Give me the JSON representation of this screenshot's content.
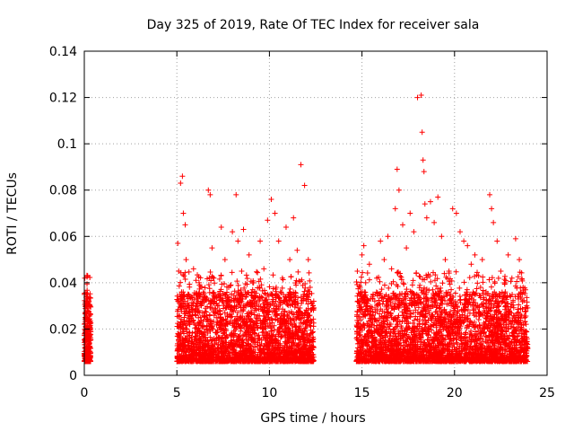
{
  "chart_data": {
    "type": "scatter",
    "title": "Day 325 of 2019, Rate Of TEC Index for receiver sala",
    "xlabel": "GPS time / hours",
    "ylabel": "ROTI / TECUs",
    "xlim": [
      0,
      25
    ],
    "ylim": [
      0,
      0.14
    ],
    "xticks": [
      0,
      5,
      10,
      15,
      20,
      25
    ],
    "xtick_labels": [
      "0",
      "5",
      "10",
      "15",
      "20",
      "25"
    ],
    "yticks": [
      0,
      0.02,
      0.04,
      0.06,
      0.08,
      0.1,
      0.12,
      0.14
    ],
    "ytick_labels": [
      "0",
      "0.02",
      "0.04",
      "0.06",
      "0.08",
      "0.1",
      "0.12",
      "0.14"
    ],
    "grid": true,
    "marker": "+",
    "color": "#ff0000",
    "series": [
      {
        "name": "ROTI",
        "x": [
          0.05,
          0.12,
          0.18,
          0.22,
          0.26,
          0.3,
          0.34,
          0.08,
          0.15,
          0.2,
          0.28,
          5.05,
          5.1,
          5.2,
          5.3,
          5.35,
          5.45,
          5.5,
          5.6,
          5.7,
          5.8,
          5.9,
          6.0,
          6.1,
          6.2,
          6.3,
          6.45,
          6.55,
          6.7,
          6.8,
          6.9,
          7.0,
          7.2,
          7.4,
          7.6,
          7.8,
          8.0,
          8.2,
          8.3,
          8.5,
          8.6,
          8.7,
          8.9,
          9.1,
          9.3,
          9.5,
          9.7,
          9.9,
          10.1,
          10.3,
          10.5,
          10.7,
          10.9,
          11.1,
          11.3,
          11.5,
          11.7,
          11.9,
          12.1,
          12.2,
          12.35,
          14.75,
          14.9,
          15.0,
          15.1,
          15.2,
          15.4,
          15.6,
          15.8,
          16.0,
          16.2,
          16.4,
          16.6,
          16.8,
          16.9,
          17.0,
          17.2,
          17.4,
          17.6,
          17.8,
          18.0,
          18.2,
          18.25,
          18.3,
          18.35,
          18.4,
          18.5,
          18.7,
          18.9,
          19.1,
          19.3,
          19.5,
          19.7,
          19.9,
          20.1,
          20.3,
          20.5,
          20.7,
          20.9,
          21.1,
          21.3,
          21.5,
          21.7,
          21.9,
          22.0,
          22.1,
          22.3,
          22.5,
          22.7,
          22.9,
          23.1,
          23.3,
          23.5,
          23.7,
          23.9,
          5.25,
          5.4,
          5.55,
          6.35,
          6.5,
          6.65,
          6.85,
          6.95,
          7.15,
          7.35,
          7.55,
          8.15,
          8.45,
          8.75,
          9.05,
          9.35,
          9.65,
          10.25,
          10.55,
          10.85,
          11.25,
          11.55,
          11.85,
          12.05,
          15.3,
          15.5,
          15.7,
          16.1,
          16.5,
          16.7,
          17.1,
          17.3,
          17.5,
          17.7,
          18.1,
          18.6,
          19.0,
          19.4,
          19.8,
          20.2,
          20.6,
          21.0,
          21.4,
          21.8,
          22.2,
          22.6,
          23.0,
          23.4,
          23.8
        ],
        "y": [
          0.015,
          0.03,
          0.043,
          0.012,
          0.008,
          0.02,
          0.006,
          0.025,
          0.018,
          0.01,
          0.014,
          0.057,
          0.045,
          0.083,
          0.086,
          0.07,
          0.065,
          0.05,
          0.035,
          0.022,
          0.03,
          0.046,
          0.028,
          0.018,
          0.04,
          0.032,
          0.021,
          0.016,
          0.08,
          0.078,
          0.055,
          0.042,
          0.03,
          0.064,
          0.05,
          0.038,
          0.062,
          0.078,
          0.058,
          0.045,
          0.063,
          0.036,
          0.052,
          0.04,
          0.03,
          0.058,
          0.046,
          0.067,
          0.076,
          0.07,
          0.058,
          0.042,
          0.064,
          0.05,
          0.068,
          0.054,
          0.091,
          0.082,
          0.05,
          0.038,
          0.03,
          0.045,
          0.038,
          0.052,
          0.056,
          0.04,
          0.048,
          0.035,
          0.042,
          0.058,
          0.05,
          0.06,
          0.046,
          0.072,
          0.089,
          0.08,
          0.065,
          0.055,
          0.07,
          0.062,
          0.12,
          0.121,
          0.105,
          0.093,
          0.088,
          0.074,
          0.068,
          0.075,
          0.066,
          0.077,
          0.06,
          0.05,
          0.045,
          0.072,
          0.07,
          0.062,
          0.058,
          0.056,
          0.048,
          0.052,
          0.043,
          0.05,
          0.035,
          0.078,
          0.072,
          0.066,
          0.058,
          0.045,
          0.04,
          0.052,
          0.042,
          0.059,
          0.05,
          0.038,
          0.03,
          0.03,
          0.025,
          0.02,
          0.018,
          0.015,
          0.024,
          0.012,
          0.02,
          0.016,
          0.022,
          0.014,
          0.018,
          0.025,
          0.013,
          0.02,
          0.017,
          0.022,
          0.015,
          0.019,
          0.021,
          0.014,
          0.02,
          0.017,
          0.016,
          0.018,
          0.022,
          0.015,
          0.02,
          0.017,
          0.024,
          0.016,
          0.019,
          0.023,
          0.014,
          0.018,
          0.021,
          0.016,
          0.02,
          0.017,
          0.019,
          0.015,
          0.022,
          0.018,
          0.02,
          0.016,
          0.019,
          0.014,
          0.017,
          0.015
        ]
      }
    ]
  }
}
